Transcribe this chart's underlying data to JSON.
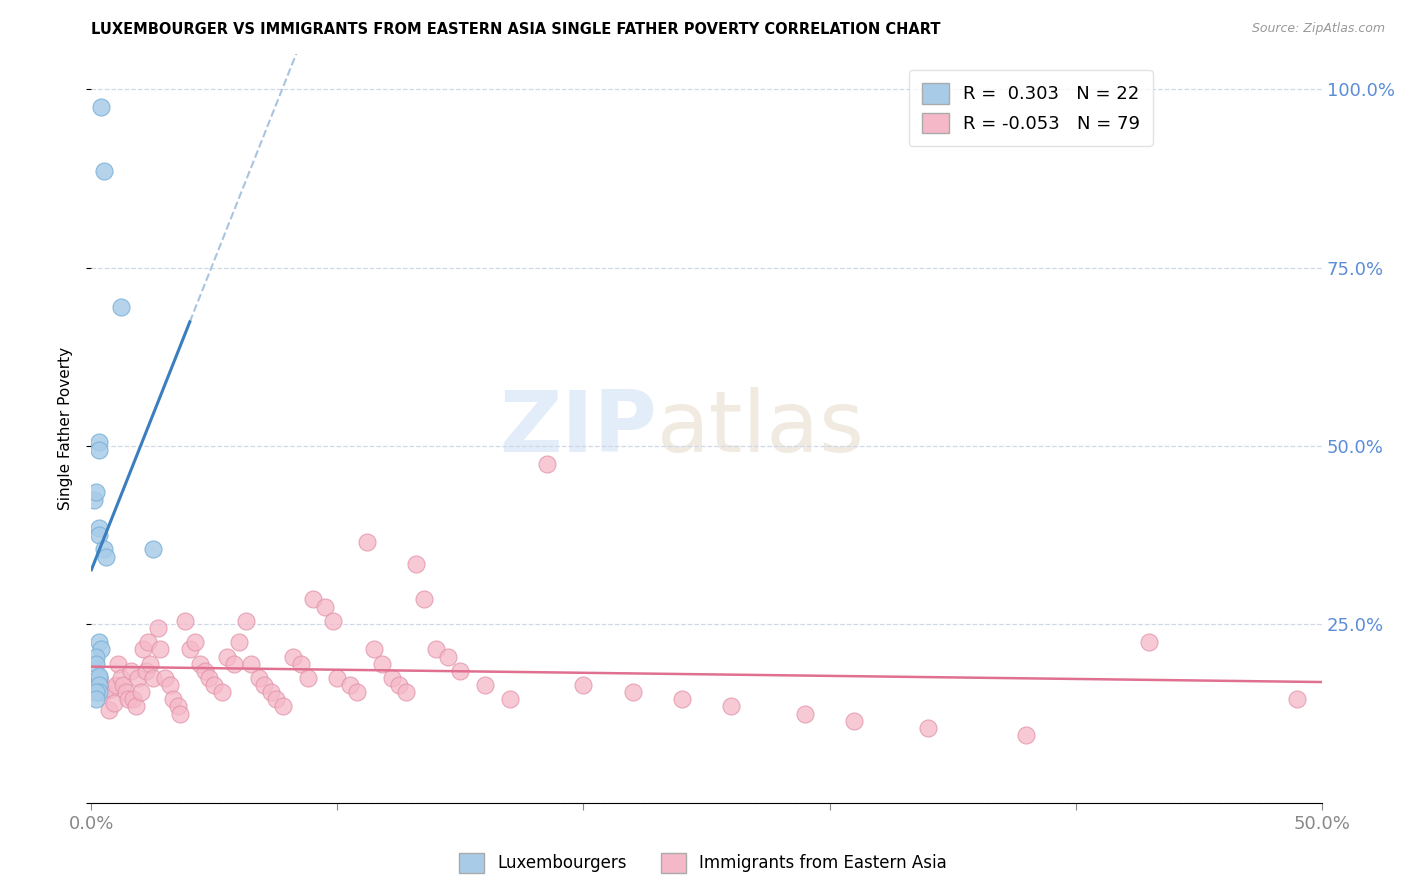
{
  "title": "LUXEMBOURGER VS IMMIGRANTS FROM EASTERN ASIA SINGLE FATHER POVERTY CORRELATION CHART",
  "source": "Source: ZipAtlas.com",
  "ylabel": "Single Father Poverty",
  "xlim": [
    0.0,
    0.5
  ],
  "ylim": [
    0.0,
    1.05
  ],
  "R_blue": 0.303,
  "N_blue": 22,
  "R_pink": -0.053,
  "N_pink": 79,
  "blue_color": "#a8cce8",
  "pink_color": "#f5b8c8",
  "blue_line_color": "#3a7ebf",
  "pink_line_color": "#e07090",
  "dash_color": "#aac4e0",
  "axis_tick_color": "#5b8dd9",
  "legend_blue_label": "Luxembourgers",
  "legend_pink_label": "Immigrants from Eastern Asia",
  "blue_scatter_x": [
    0.004,
    0.005,
    0.012,
    0.003,
    0.003,
    0.001,
    0.002,
    0.003,
    0.003,
    0.005,
    0.006,
    0.003,
    0.004,
    0.002,
    0.002,
    0.003,
    0.003,
    0.003,
    0.003,
    0.025,
    0.002,
    0.002
  ],
  "blue_scatter_y": [
    0.975,
    0.885,
    0.695,
    0.505,
    0.495,
    0.425,
    0.435,
    0.385,
    0.375,
    0.355,
    0.345,
    0.225,
    0.215,
    0.205,
    0.195,
    0.175,
    0.178,
    0.165,
    0.155,
    0.355,
    0.155,
    0.145
  ],
  "pink_scatter_x": [
    0.003,
    0.005,
    0.007,
    0.008,
    0.009,
    0.01,
    0.011,
    0.012,
    0.013,
    0.014,
    0.015,
    0.016,
    0.017,
    0.018,
    0.019,
    0.02,
    0.021,
    0.022,
    0.023,
    0.024,
    0.025,
    0.027,
    0.028,
    0.03,
    0.032,
    0.033,
    0.035,
    0.036,
    0.038,
    0.04,
    0.042,
    0.044,
    0.046,
    0.048,
    0.05,
    0.053,
    0.055,
    0.058,
    0.06,
    0.063,
    0.065,
    0.068,
    0.07,
    0.073,
    0.075,
    0.078,
    0.082,
    0.085,
    0.088,
    0.09,
    0.095,
    0.098,
    0.1,
    0.105,
    0.108,
    0.112,
    0.115,
    0.118,
    0.122,
    0.125,
    0.128,
    0.132,
    0.135,
    0.14,
    0.145,
    0.15,
    0.16,
    0.17,
    0.185,
    0.2,
    0.22,
    0.24,
    0.26,
    0.29,
    0.31,
    0.34,
    0.38,
    0.43,
    0.49
  ],
  "pink_scatter_y": [
    0.175,
    0.155,
    0.13,
    0.16,
    0.14,
    0.165,
    0.195,
    0.175,
    0.165,
    0.155,
    0.145,
    0.185,
    0.145,
    0.135,
    0.175,
    0.155,
    0.215,
    0.185,
    0.225,
    0.195,
    0.175,
    0.245,
    0.215,
    0.175,
    0.165,
    0.145,
    0.135,
    0.125,
    0.255,
    0.215,
    0.225,
    0.195,
    0.185,
    0.175,
    0.165,
    0.155,
    0.205,
    0.195,
    0.225,
    0.255,
    0.195,
    0.175,
    0.165,
    0.155,
    0.145,
    0.135,
    0.205,
    0.195,
    0.175,
    0.285,
    0.275,
    0.255,
    0.175,
    0.165,
    0.155,
    0.365,
    0.215,
    0.195,
    0.175,
    0.165,
    0.155,
    0.335,
    0.285,
    0.215,
    0.205,
    0.185,
    0.165,
    0.145,
    0.475,
    0.165,
    0.155,
    0.145,
    0.135,
    0.125,
    0.115,
    0.105,
    0.095,
    0.225,
    0.145
  ]
}
